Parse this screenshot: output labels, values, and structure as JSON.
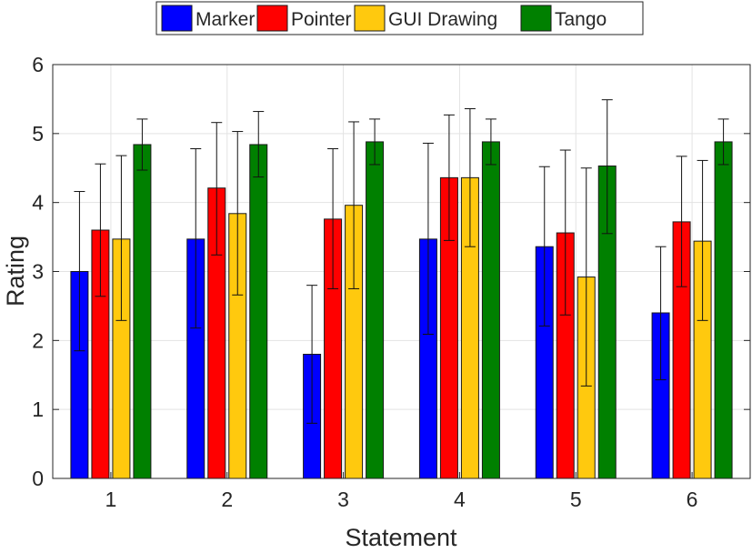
{
  "chart_data": {
    "type": "bar",
    "xlabel": "Statement",
    "ylabel": "Rating",
    "ylim": [
      0,
      6
    ],
    "yticks": [
      "0",
      "1",
      "2",
      "3",
      "4",
      "5",
      "6"
    ],
    "categories": [
      "1",
      "2",
      "3",
      "4",
      "5",
      "6"
    ],
    "grid": true,
    "legend_position": "top",
    "series": [
      {
        "name": "Marker",
        "color": "#0000ff",
        "values": [
          3.0,
          3.47,
          1.8,
          3.47,
          3.36,
          2.4
        ],
        "err_low": [
          1.85,
          2.18,
          0.8,
          2.09,
          2.21,
          1.43
        ],
        "err_high": [
          4.16,
          4.78,
          2.8,
          4.86,
          4.52,
          3.36
        ]
      },
      {
        "name": "Pointer",
        "color": "#ff0000",
        "values": [
          3.6,
          4.21,
          3.76,
          4.36,
          3.56,
          3.72
        ],
        "err_low": [
          2.64,
          3.24,
          2.75,
          3.45,
          2.37,
          2.78
        ],
        "err_high": [
          4.56,
          5.16,
          4.78,
          5.27,
          4.76,
          4.67
        ]
      },
      {
        "name": "GUI Drawing",
        "color": "#ffc90e",
        "values": [
          3.47,
          3.84,
          3.96,
          4.36,
          2.92,
          3.44
        ],
        "err_low": [
          2.29,
          2.66,
          2.75,
          3.36,
          1.34,
          2.29
        ],
        "err_high": [
          4.68,
          5.03,
          5.17,
          5.36,
          4.5,
          4.61
        ]
      },
      {
        "name": "Tango",
        "color": "#008000",
        "values": [
          4.84,
          4.84,
          4.88,
          4.88,
          4.53,
          4.88
        ],
        "err_low": [
          4.47,
          4.37,
          4.55,
          4.55,
          3.55,
          4.55
        ],
        "err_high": [
          5.21,
          5.32,
          5.21,
          5.21,
          5.49,
          5.21
        ]
      }
    ]
  }
}
